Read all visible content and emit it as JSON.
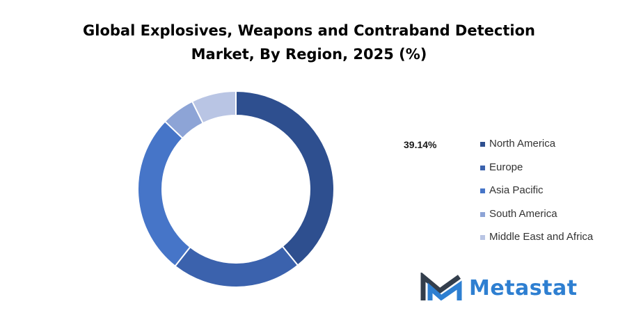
{
  "title_lines": [
    "Global Explosives, Weapons and Contraband Detection",
    "Market, By Region, 2025 (%)"
  ],
  "callout": "39.14%",
  "brand": {
    "name": "Metastat",
    "colors": {
      "mark_dark": "#333e4c",
      "mark_accent": "#2e7fd1",
      "text": "#2e7fd1"
    }
  },
  "chart_data": {
    "type": "pie",
    "variant": "donut",
    "title": "Global Explosives, Weapons and Contraband Detection Market, By Region, 2025 (%)",
    "categories": [
      "North America",
      "Europe",
      "Asia Pacific",
      "South America",
      "Middle East and Africa"
    ],
    "values": [
      39.14,
      21.5,
      26.5,
      5.5,
      7.36
    ],
    "colors": [
      "#2e4f8f",
      "#3b62ad",
      "#4675c8",
      "#8da4d6",
      "#b9c5e4"
    ],
    "data_labels": [
      "39.14%",
      "",
      "",
      "",
      ""
    ],
    "legend_position": "right",
    "start_angle_deg": 0,
    "direction": "clockwise"
  }
}
